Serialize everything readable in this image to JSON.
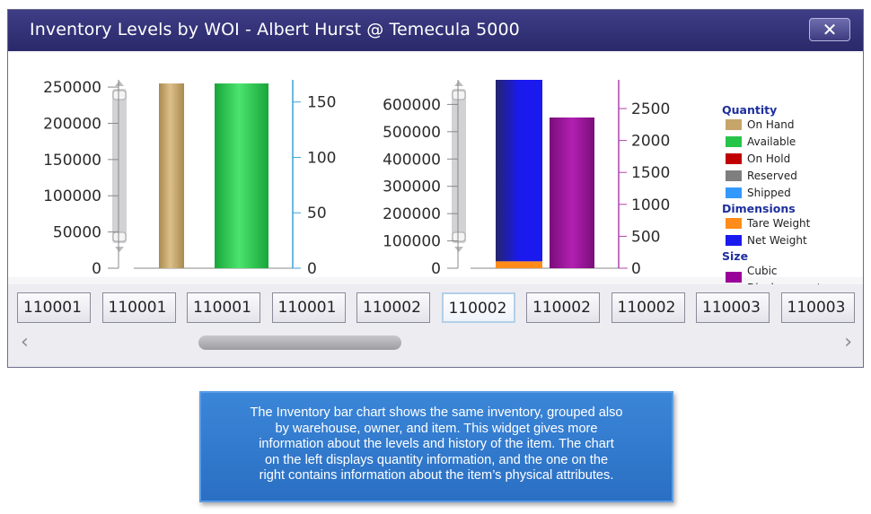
{
  "window": {
    "title": "Inventory Levels by WOI - Albert Hurst @ Temecula 5000",
    "close_label": "✕"
  },
  "charts": {
    "left": {
      "left_ticks": [
        "250000",
        "200000",
        "150000",
        "100000",
        "50000",
        "0"
      ],
      "right_ticks": [
        "150",
        "100",
        "50",
        "0"
      ]
    },
    "right": {
      "left_ticks": [
        "600000",
        "500000",
        "400000",
        "300000",
        "200000",
        "100000",
        "0"
      ],
      "right_ticks": [
        "2500",
        "2000",
        "1500",
        "1000",
        "500",
        "0"
      ]
    }
  },
  "chart_data": [
    {
      "type": "bar",
      "name": "Quantity",
      "categories": [
        "110002"
      ],
      "series": [
        {
          "name": "On Hand",
          "values": [
            255000
          ],
          "color": "#c5a56a"
        },
        {
          "name": "Available",
          "values": [
            255000
          ],
          "color": "#27c44a"
        },
        {
          "name": "On Hold",
          "values": [
            0
          ],
          "color": "#c00000"
        },
        {
          "name": "Reserved",
          "values": [
            0
          ],
          "color": "#7f7f7f"
        },
        {
          "name": "Shipped",
          "values": [
            0
          ],
          "color": "#3399ff"
        }
      ],
      "ylim": [
        0,
        260000
      ],
      "y2lim": [
        0,
        170
      ]
    },
    {
      "type": "bar",
      "name": "Dimensions / Size",
      "categories": [
        "110002"
      ],
      "series": [
        {
          "name": "Tare Weight",
          "values": [
            25000
          ],
          "color": "#ff8c1a"
        },
        {
          "name": "Net Weight",
          "values": [
            665000
          ],
          "color": "#1a1aee"
        },
        {
          "name": "Cubic Displacement",
          "values": [
            2360
          ],
          "color": "#990099",
          "axis": "right"
        }
      ],
      "ylim": [
        0,
        690000
      ],
      "y2lim": [
        0,
        2950
      ]
    }
  ],
  "legend": {
    "groups": [
      {
        "heading": "Quantity",
        "items": [
          {
            "label": "On Hand",
            "color": "#c5a56a"
          },
          {
            "label": "Available",
            "color": "#27c44a"
          },
          {
            "label": "On Hold",
            "color": "#c00000"
          },
          {
            "label": "Reserved",
            "color": "#7f7f7f"
          },
          {
            "label": "Shipped",
            "color": "#3399ff"
          }
        ]
      },
      {
        "heading": "Dimensions",
        "items": [
          {
            "label": "Tare Weight",
            "color": "#ff8c1a"
          },
          {
            "label": "Net Weight",
            "color": "#1a1aee"
          }
        ]
      },
      {
        "heading": "Size",
        "items": [
          {
            "label": "Cubic Displacement",
            "line1": "Cubic",
            "line2": "Displacement",
            "color": "#990099"
          }
        ]
      }
    ]
  },
  "items": [
    "110001",
    "110001",
    "110001",
    "110001",
    "110002",
    "110002",
    "110002",
    "110002",
    "110003",
    "110003"
  ],
  "selected_item_index": 5,
  "caption": {
    "lines": [
      "The Inventory bar chart shows the same inventory, grouped also",
      "by warehouse, owner, and item. This widget gives more",
      "information about the levels and history of the item. The chart",
      "on the left displays quantity information, and the one on the",
      "right contains information about the item’s physical attributes."
    ]
  }
}
